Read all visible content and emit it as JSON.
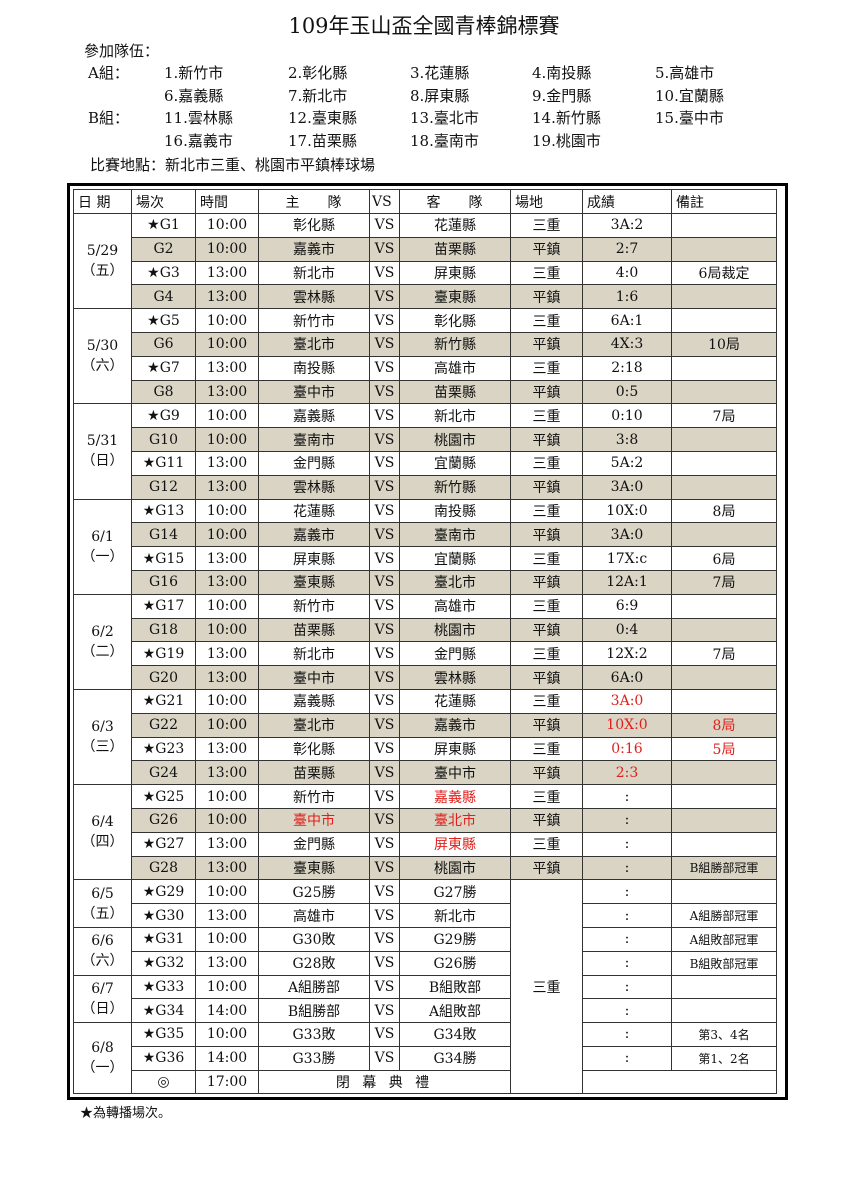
{
  "title": "109年玉山盃全國青棒錦標賽",
  "teams_label": "參加隊伍：",
  "groups": [
    {
      "label": "A組：",
      "teams": [
        "1.新竹市",
        "2.彰化縣",
        "3.花蓮縣",
        "4.南投縣",
        "5.高雄市",
        "6.嘉義縣",
        "7.新北市",
        "8.屏東縣",
        "9.金門縣",
        "10.宜蘭縣"
      ]
    },
    {
      "label": "B組：",
      "teams": [
        "11.雲林縣",
        "12.臺東縣",
        "13.臺北市",
        "14.新竹縣",
        "15.臺中市",
        "16.嘉義市",
        "17.苗栗縣",
        "18.臺南市",
        "19.桃園市"
      ]
    }
  ],
  "venue_line": "比賽地點：新北市三重、桃園市平鎮棒球場",
  "table": {
    "headers": [
      "日 期",
      "場次",
      "時間",
      "主　　隊",
      "VS",
      "客　　隊",
      "場地",
      "成績",
      "備註"
    ],
    "colors": {
      "shade": "#d9d4c4",
      "red": "#e0201c"
    },
    "days": [
      {
        "date": "5/29",
        "weekday": "（五）",
        "rows": [
          {
            "game": "★G1",
            "time": "10:00",
            "home": "彰化縣",
            "vs": "VS",
            "away": "花蓮縣",
            "venue": "三重",
            "score": "3A:2",
            "note": ""
          },
          {
            "game": "G2",
            "time": "10:00",
            "home": "嘉義市",
            "vs": "VS",
            "away": "苗栗縣",
            "venue": "平鎮",
            "score": "2:7",
            "note": ""
          },
          {
            "game": "★G3",
            "time": "13:00",
            "home": "新北市",
            "vs": "VS",
            "away": "屏東縣",
            "venue": "三重",
            "score": "4:0",
            "note": "6局裁定"
          },
          {
            "game": "G4",
            "time": "13:00",
            "home": "雲林縣",
            "vs": "VS",
            "away": "臺東縣",
            "venue": "平鎮",
            "score": "1:6",
            "note": ""
          }
        ]
      },
      {
        "date": "5/30",
        "weekday": "（六）",
        "rows": [
          {
            "game": "★G5",
            "time": "10:00",
            "home": "新竹市",
            "vs": "VS",
            "away": "彰化縣",
            "venue": "三重",
            "score": "6A:1",
            "note": ""
          },
          {
            "game": "G6",
            "time": "10:00",
            "home": "臺北市",
            "vs": "VS",
            "away": "新竹縣",
            "venue": "平鎮",
            "score": "4X:3",
            "note": "10局"
          },
          {
            "game": "★G7",
            "time": "13:00",
            "home": "南投縣",
            "vs": "VS",
            "away": "高雄市",
            "venue": "三重",
            "score": "2:18",
            "note": ""
          },
          {
            "game": "G8",
            "time": "13:00",
            "home": "臺中市",
            "vs": "VS",
            "away": "苗栗縣",
            "venue": "平鎮",
            "score": "0:5",
            "note": ""
          }
        ]
      },
      {
        "date": "5/31",
        "weekday": "（日）",
        "rows": [
          {
            "game": "★G9",
            "time": "10:00",
            "home": "嘉義縣",
            "vs": "VS",
            "away": "新北市",
            "venue": "三重",
            "score": "0:10",
            "note": "7局"
          },
          {
            "game": "G10",
            "time": "10:00",
            "home": "臺南市",
            "vs": "VS",
            "away": "桃園市",
            "venue": "平鎮",
            "score": "3:8",
            "note": ""
          },
          {
            "game": "★G11",
            "time": "13:00",
            "home": "金門縣",
            "vs": "VS",
            "away": "宜蘭縣",
            "venue": "三重",
            "score": "5A:2",
            "note": ""
          },
          {
            "game": "G12",
            "time": "13:00",
            "home": "雲林縣",
            "vs": "VS",
            "away": "新竹縣",
            "venue": "平鎮",
            "score": "3A:0",
            "note": ""
          }
        ]
      },
      {
        "date": "6/1",
        "weekday": "（一）",
        "rows": [
          {
            "game": "★G13",
            "time": "10:00",
            "home": "花蓮縣",
            "vs": "VS",
            "away": "南投縣",
            "venue": "三重",
            "score": "10X:0",
            "note": "8局"
          },
          {
            "game": "G14",
            "time": "10:00",
            "home": "嘉義市",
            "vs": "VS",
            "away": "臺南市",
            "venue": "平鎮",
            "score": "3A:0",
            "note": ""
          },
          {
            "game": "★G15",
            "time": "13:00",
            "home": "屏東縣",
            "vs": "VS",
            "away": "宜蘭縣",
            "venue": "三重",
            "score": "17X:c",
            "note": "6局"
          },
          {
            "game": "G16",
            "time": "13:00",
            "home": "臺東縣",
            "vs": "VS",
            "away": "臺北市",
            "venue": "平鎮",
            "score": "12A:1",
            "note": "7局"
          }
        ]
      },
      {
        "date": "6/2",
        "weekday": "（二）",
        "rows": [
          {
            "game": "★G17",
            "time": "10:00",
            "home": "新竹市",
            "vs": "VS",
            "away": "高雄市",
            "venue": "三重",
            "score": "6:9",
            "note": ""
          },
          {
            "game": "G18",
            "time": "10:00",
            "home": "苗栗縣",
            "vs": "VS",
            "away": "桃園市",
            "venue": "平鎮",
            "score": "0:4",
            "note": ""
          },
          {
            "game": "★G19",
            "time": "13:00",
            "home": "新北市",
            "vs": "VS",
            "away": "金門縣",
            "venue": "三重",
            "score": "12X:2",
            "note": "7局"
          },
          {
            "game": "G20",
            "time": "13:00",
            "home": "臺中市",
            "vs": "VS",
            "away": "雲林縣",
            "venue": "平鎮",
            "score": "6A:0",
            "note": ""
          }
        ]
      },
      {
        "date": "6/3",
        "weekday": "（三）",
        "rows": [
          {
            "game": "★G21",
            "time": "10:00",
            "home": "嘉義縣",
            "vs": "VS",
            "away": "花蓮縣",
            "venue": "三重",
            "score": "3A:0",
            "note": "",
            "red": [
              "score"
            ]
          },
          {
            "game": "G22",
            "time": "10:00",
            "home": "臺北市",
            "vs": "VS",
            "away": "嘉義市",
            "venue": "平鎮",
            "score": "10X:0",
            "note": "8局",
            "red": [
              "score",
              "note"
            ]
          },
          {
            "game": "★G23",
            "time": "13:00",
            "home": "彰化縣",
            "vs": "VS",
            "away": "屏東縣",
            "venue": "三重",
            "score": "0:16",
            "note": "5局",
            "red": [
              "score",
              "note"
            ]
          },
          {
            "game": "G24",
            "time": "13:00",
            "home": "苗栗縣",
            "vs": "VS",
            "away": "臺中市",
            "venue": "平鎮",
            "score": "2:3",
            "note": "",
            "red": [
              "score"
            ]
          }
        ]
      },
      {
        "date": "6/4",
        "weekday": "（四）",
        "rows": [
          {
            "game": "★G25",
            "time": "10:00",
            "home": "新竹市",
            "vs": "VS",
            "away": "嘉義縣",
            "venue": "三重",
            "score": ":",
            "note": "",
            "red": [
              "away"
            ]
          },
          {
            "game": "G26",
            "time": "10:00",
            "home": "臺中市",
            "vs": "VS",
            "away": "臺北市",
            "venue": "平鎮",
            "score": ":",
            "note": "",
            "red": [
              "home",
              "away"
            ]
          },
          {
            "game": "★G27",
            "time": "13:00",
            "home": "金門縣",
            "vs": "VS",
            "away": "屏東縣",
            "venue": "三重",
            "score": ":",
            "note": "",
            "red": [
              "away"
            ]
          },
          {
            "game": "G28",
            "time": "13:00",
            "home": "臺東縣",
            "vs": "VS",
            "away": "桃園市",
            "venue": "平鎮",
            "score": ":",
            "note": "B組勝部冠軍"
          }
        ]
      },
      {
        "date": "6/5",
        "weekday": "（五）",
        "rows": [
          {
            "game": "★G29",
            "time": "10:00",
            "home": "G25勝",
            "vs": "VS",
            "away": "G27勝",
            "score": ":",
            "note": ""
          },
          {
            "game": "★G30",
            "time": "13:00",
            "home": "高雄市",
            "vs": "VS",
            "away": "新北市",
            "score": ":",
            "note": "A組勝部冠軍"
          }
        ]
      },
      {
        "date": "6/6",
        "weekday": "（六）",
        "rows": [
          {
            "game": "★G31",
            "time": "10:00",
            "home": "G30敗",
            "vs": "VS",
            "away": "G29勝",
            "score": ":",
            "note": "A組敗部冠軍"
          },
          {
            "game": "★G32",
            "time": "13:00",
            "home": "G28敗",
            "vs": "VS",
            "away": "G26勝",
            "score": ":",
            "note": "B組敗部冠軍"
          }
        ]
      },
      {
        "date": "6/7",
        "weekday": "（日）",
        "rows": [
          {
            "game": "★G33",
            "time": "10:00",
            "home": "A組勝部",
            "vs": "VS",
            "away": "B組敗部",
            "score": ":",
            "note": ""
          },
          {
            "game": "★G34",
            "time": "14:00",
            "home": "B組勝部",
            "vs": "VS",
            "away": "A組敗部",
            "score": ":",
            "note": ""
          }
        ]
      },
      {
        "date": "6/8",
        "weekday": "（一）",
        "rows": [
          {
            "game": "★G35",
            "time": "10:00",
            "home": "G33敗",
            "vs": "VS",
            "away": "G34敗",
            "score": ":",
            "note": "第3、4名"
          },
          {
            "game": "★G36",
            "time": "14:00",
            "home": "G33勝",
            "vs": "VS",
            "away": "G34勝",
            "score": ":",
            "note": "第1、2名"
          },
          {
            "game": "◎",
            "time": "17:00",
            "ceremony": "閉 幕 典 禮"
          }
        ]
      }
    ],
    "merged_venue": "三重"
  },
  "footnote": "★為轉播場次。"
}
